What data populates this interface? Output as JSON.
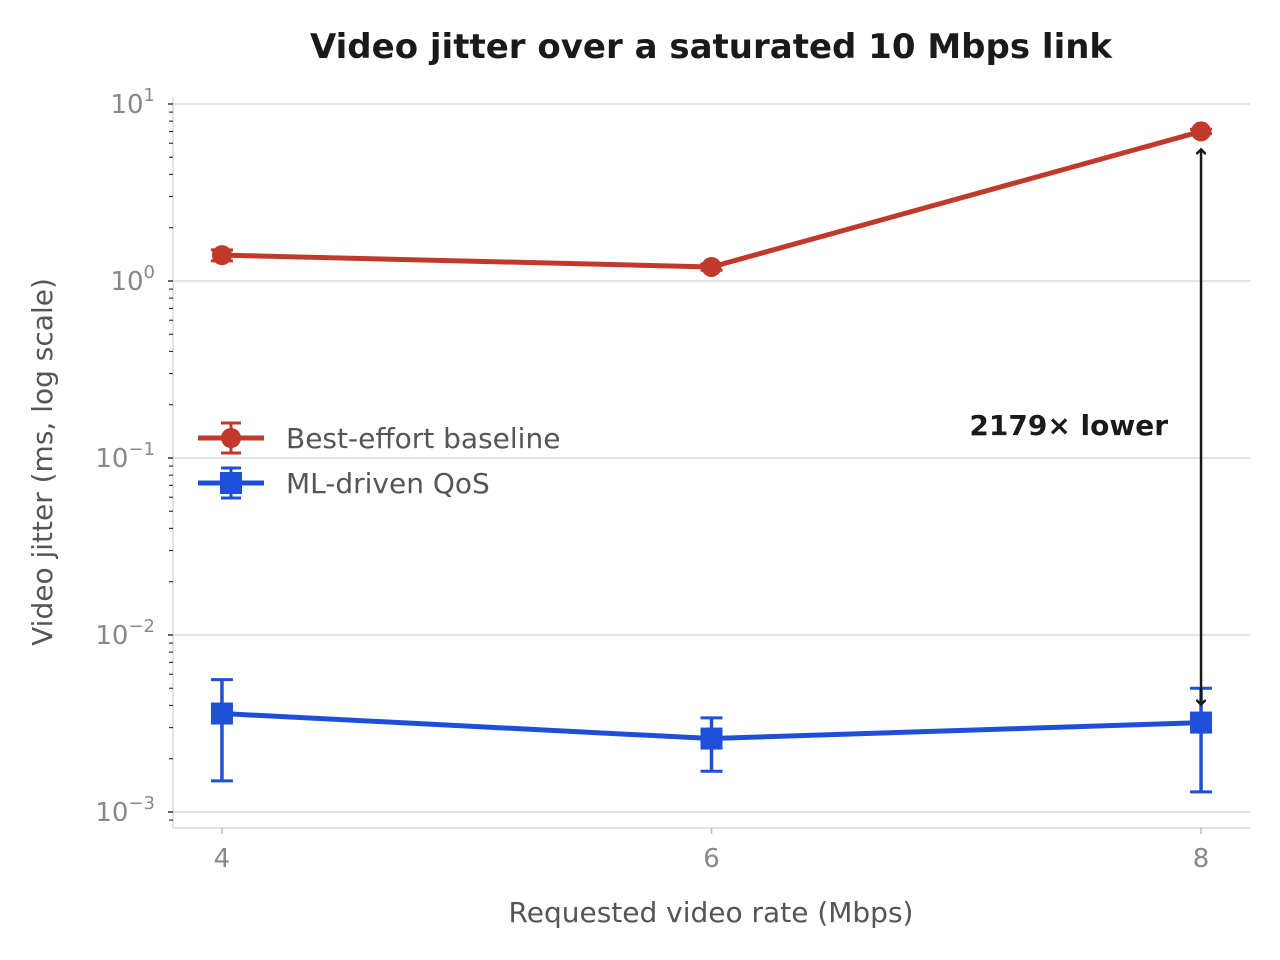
{
  "chart_data": {
    "type": "line",
    "title": "Video jitter over a saturated 10 Mbps link",
    "xlabel": "Requested video rate (Mbps)",
    "ylabel": "Video jitter (ms, log scale)",
    "x": [
      4,
      6,
      8
    ],
    "x_ticks": [
      "4",
      "6",
      "8"
    ],
    "xlim": [
      3.8,
      8.2
    ],
    "y_scale": "log",
    "ylim": [
      0.00085,
      11
    ],
    "y_ticks": [
      {
        "value": 10,
        "base": "10",
        "exp": "1"
      },
      {
        "value": 1,
        "base": "10",
        "exp": "0"
      },
      {
        "value": 0.1,
        "base": "10",
        "exp": "−1"
      },
      {
        "value": 0.01,
        "base": "10",
        "exp": "−2"
      },
      {
        "value": 0.001,
        "base": "10",
        "exp": "−3"
      }
    ],
    "grid": true,
    "legend_position": "center-left",
    "series": [
      {
        "name": "Best-effort baseline",
        "color": "#c0392b",
        "marker": "circle",
        "values": [
          1.4,
          1.2,
          7.0
        ],
        "err_low": [
          1.3,
          1.15,
          6.8
        ],
        "err_high": [
          1.5,
          1.25,
          7.2
        ]
      },
      {
        "name": "ML-driven QoS",
        "color": "#1f4fd8",
        "marker": "square",
        "values": [
          0.0036,
          0.0026,
          0.0032
        ],
        "err_low": [
          0.0015,
          0.0017,
          0.0013
        ],
        "err_high": [
          0.0056,
          0.0034,
          0.005
        ]
      }
    ],
    "annotations": [
      {
        "text": "2179× lower",
        "x": 8,
        "y_from": 7.0,
        "y_to": 0.0032,
        "color": "#1a1a1a"
      }
    ]
  }
}
